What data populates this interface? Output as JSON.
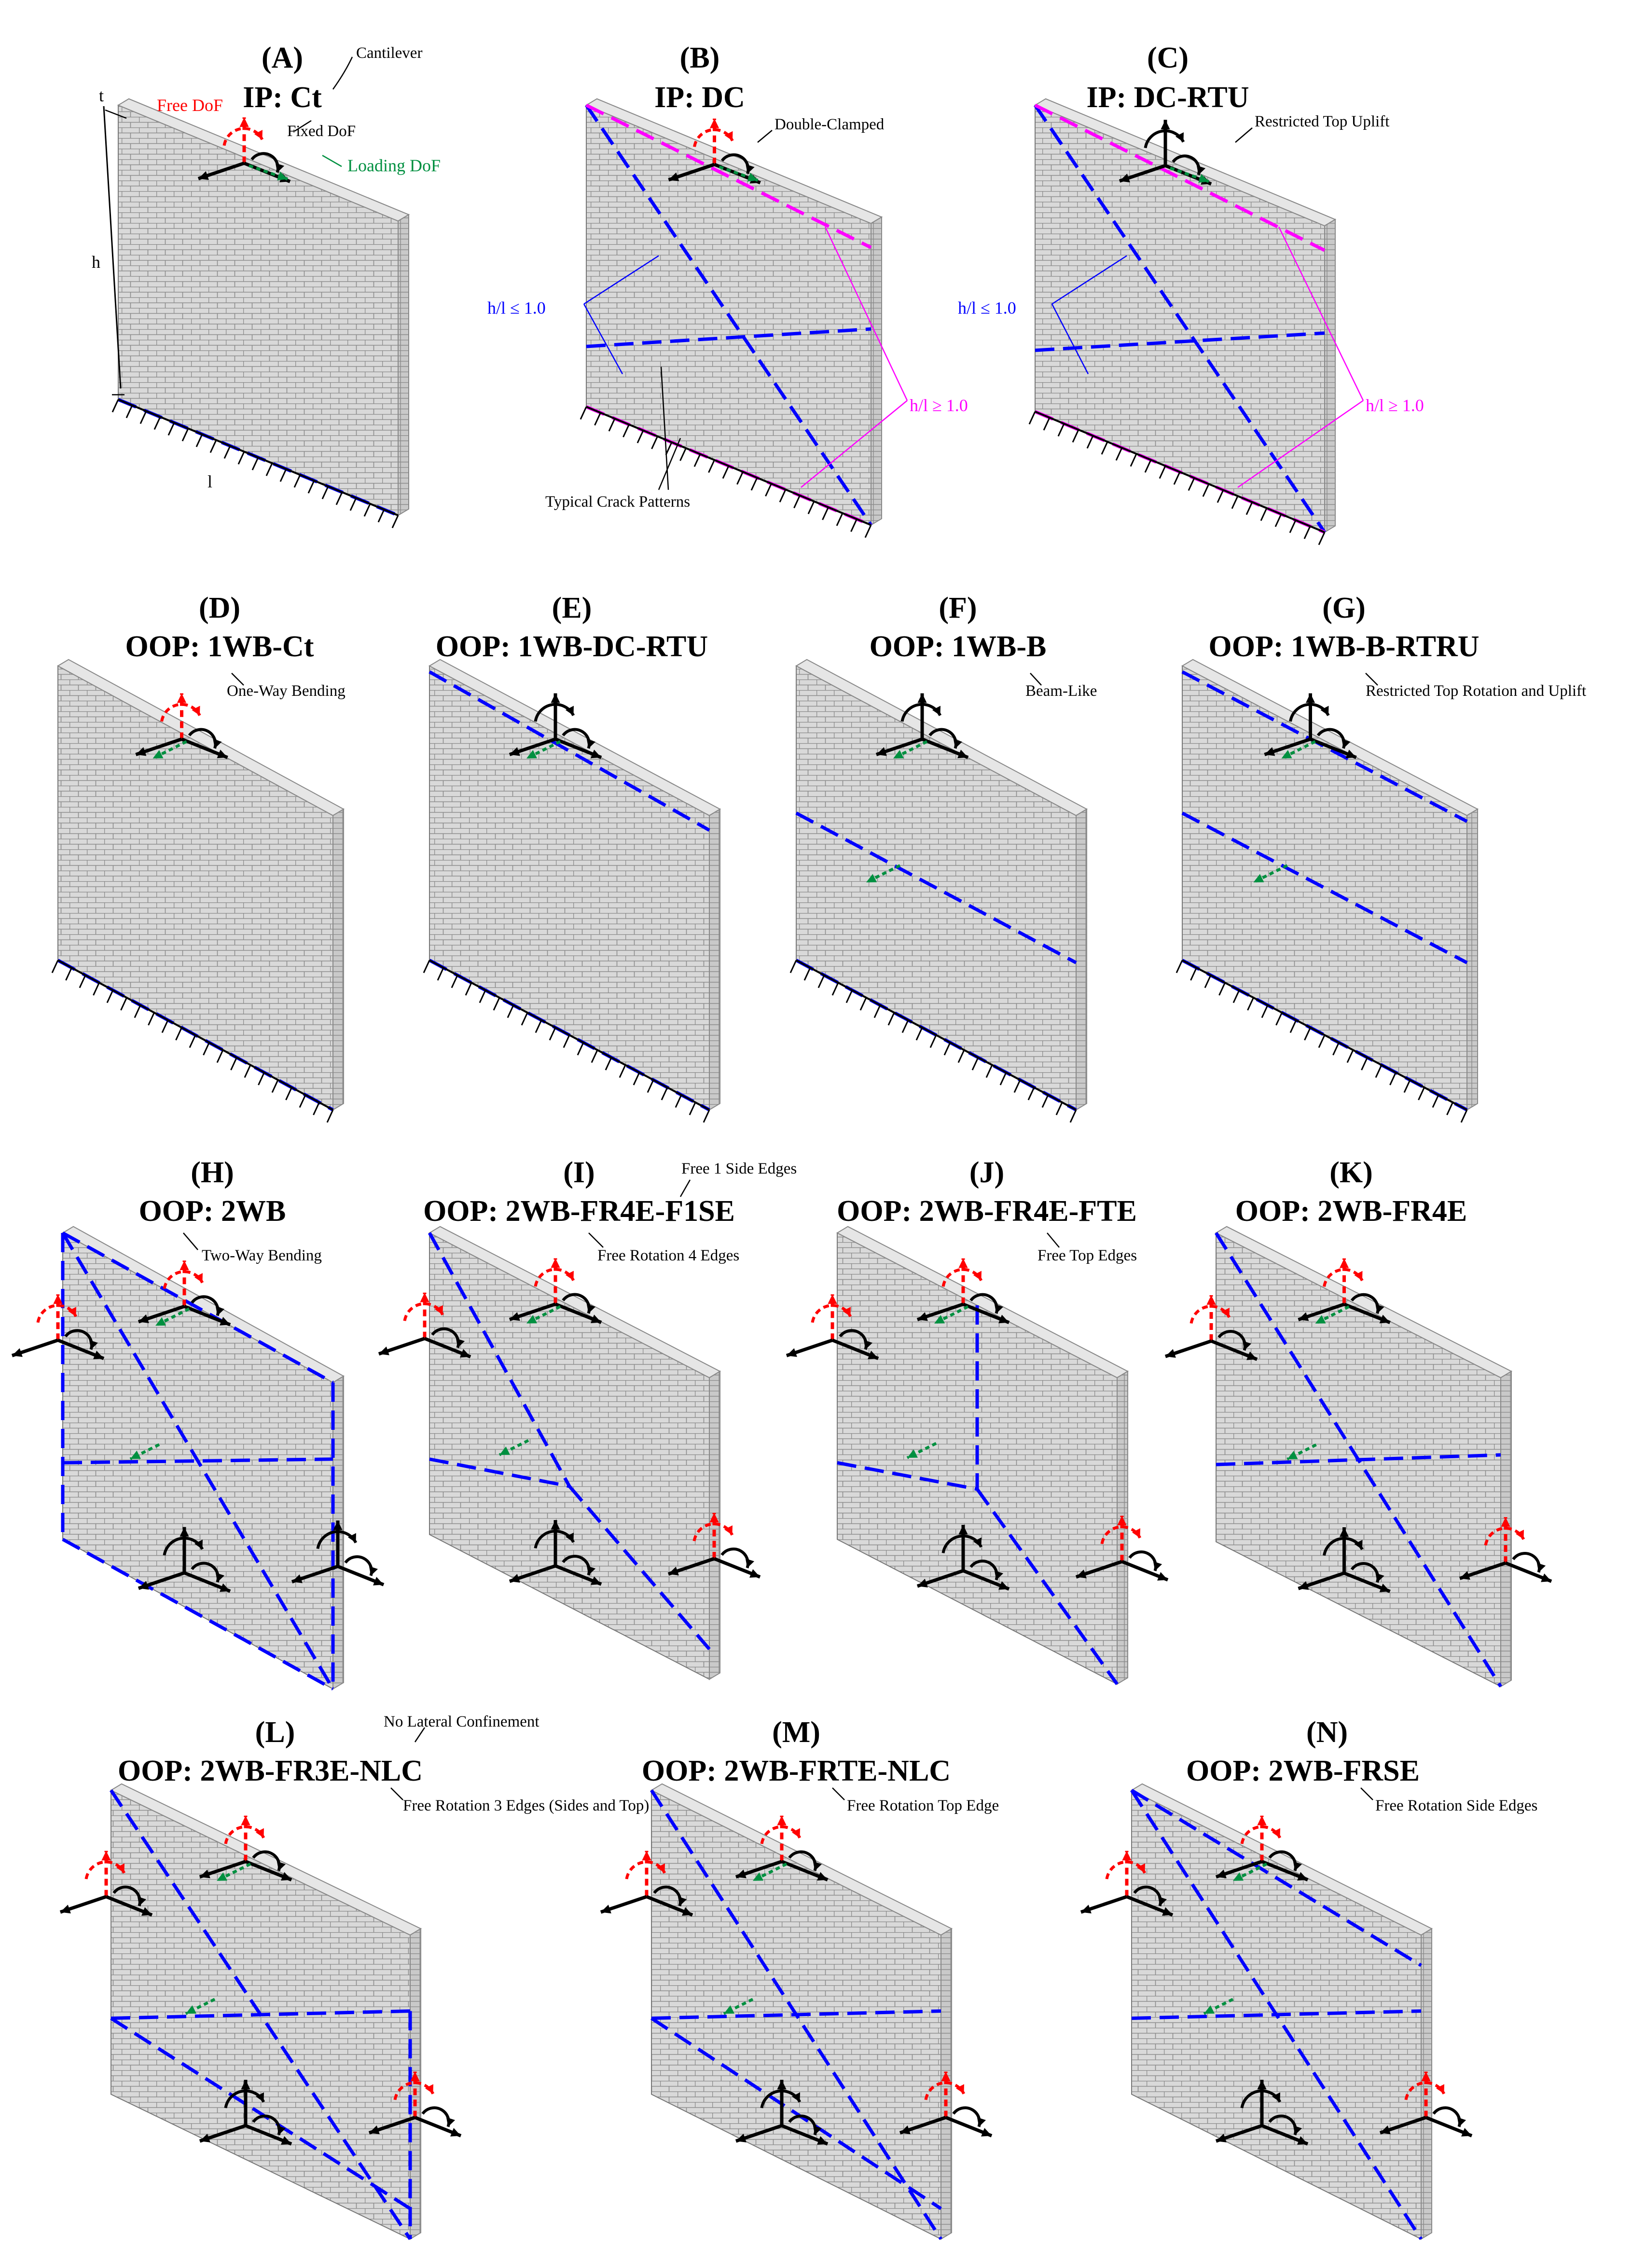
{
  "colors": {
    "free_dof": "#ff0000",
    "fixed_dof": "#000000",
    "loading_dof": "#009040",
    "crack_blue": "#0000ff",
    "crack_magenta": "#ff00ff",
    "wall_face": "#d9d9d9",
    "mortar": "#8c8c8c"
  },
  "icons": [
    "support-hatch-icon",
    "free-dof-arrow-icon",
    "fixed-dof-arrow-icon",
    "loading-dof-arrow-icon",
    "rotation-arc-icon"
  ],
  "panels": [
    {
      "letter": "(A)",
      "code": "IP: Ct",
      "note": "Cantilever"
    },
    {
      "letter": "(B)",
      "code": "IP: DC",
      "note": "Double-Clamped"
    },
    {
      "letter": "(C)",
      "code": "IP: DC-RTU",
      "note": "Restricted Top Uplift"
    },
    {
      "letter": "(D)",
      "code": "OOP: 1WB-Ct",
      "note": "One-Way Bending"
    },
    {
      "letter": "(E)",
      "code": "OOP: 1WB-DC-RTU",
      "note": ""
    },
    {
      "letter": "(F)",
      "code": "OOP: 1WB-B",
      "note": "Beam-Like"
    },
    {
      "letter": "(G)",
      "code": "OOP: 1WB-B-RTRU",
      "note": "Restricted Top Rotation and Uplift"
    },
    {
      "letter": "(H)",
      "code": "OOP: 2WB",
      "note": "Two-Way Bending"
    },
    {
      "letter": "(I)",
      "code": "OOP: 2WB-FR4E-F1SE",
      "note": "Free Rotation 4 Edges",
      "note2": "Free 1 Side Edges"
    },
    {
      "letter": "(J)",
      "code": "OOP: 2WB-FR4E-FTE",
      "note": "Free Top Edges"
    },
    {
      "letter": "(K)",
      "code": "OOP: 2WB-FR4E",
      "note": ""
    },
    {
      "letter": "(L)",
      "code": "OOP: 2WB-FR3E-NLC",
      "note": "Free Rotation 3 Edges (Sides and Top)",
      "note2": "No Lateral Confinement"
    },
    {
      "letter": "(M)",
      "code": "OOP: 2WB-FRTE-NLC",
      "note": "Free Rotation Top Edge"
    },
    {
      "letter": "(N)",
      "code": "OOP: 2WB-FRSE",
      "note": "Free Rotation Side Edges"
    }
  ],
  "legend": {
    "free": "Free DoF",
    "fixed": "Fixed DoF",
    "loading": "Loading DoF"
  },
  "dims": {
    "t": "t",
    "h": "h",
    "l": "l"
  },
  "ratios": {
    "lower": "h/l ≤ 1.0",
    "upper": "h/l ≥ 1.0"
  },
  "crack_label": "Typical Crack Patterns"
}
